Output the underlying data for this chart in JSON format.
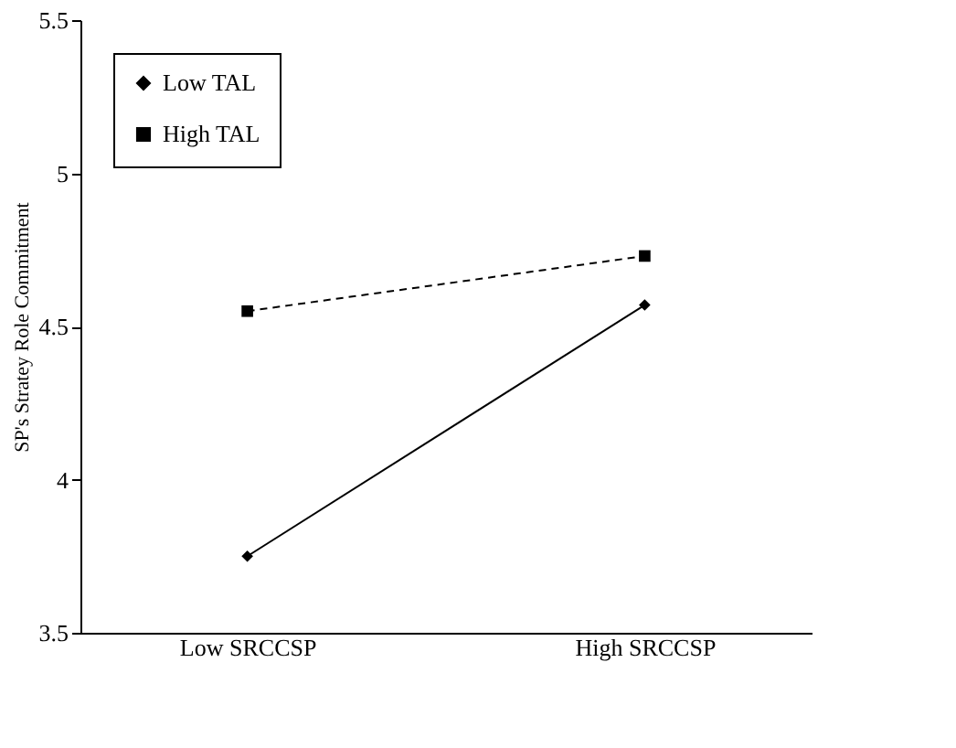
{
  "chart_data": {
    "type": "line",
    "ylabel": "SP's Stratey Role Commitment",
    "categories": [
      "Low SRCCSP",
      "High SRCCSP"
    ],
    "series": [
      {
        "name": "Low TAL",
        "color": "#000000",
        "values": [
          3.75,
          4.57
        ],
        "marker": "diamond",
        "line_style": "solid"
      },
      {
        "name": "High TAL",
        "color": "#000000",
        "values": [
          4.55,
          4.73
        ],
        "marker": "square",
        "line_style": "dashed"
      }
    ],
    "ylim": [
      3.5,
      5.5
    ],
    "yticks": [
      3.5,
      4,
      4.5,
      5,
      5.5
    ],
    "grid": false,
    "legend": "top left"
  }
}
